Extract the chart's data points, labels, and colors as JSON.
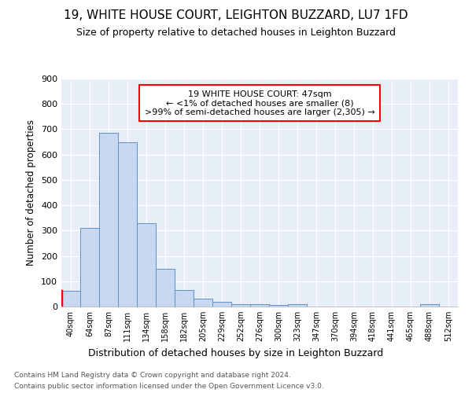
{
  "title": "19, WHITE HOUSE COURT, LEIGHTON BUZZARD, LU7 1FD",
  "subtitle": "Size of property relative to detached houses in Leighton Buzzard",
  "xlabel": "Distribution of detached houses by size in Leighton Buzzard",
  "ylabel": "Number of detached properties",
  "categories": [
    "40sqm",
    "64sqm",
    "87sqm",
    "111sqm",
    "134sqm",
    "158sqm",
    "182sqm",
    "205sqm",
    "229sqm",
    "252sqm",
    "276sqm",
    "300sqm",
    "323sqm",
    "347sqm",
    "370sqm",
    "394sqm",
    "418sqm",
    "441sqm",
    "465sqm",
    "488sqm",
    "512sqm"
  ],
  "bar_heights": [
    62,
    310,
    685,
    650,
    328,
    150,
    65,
    30,
    18,
    10,
    8,
    5,
    8,
    0,
    0,
    0,
    0,
    0,
    0,
    8,
    0
  ],
  "bar_color": "#c8d8f0",
  "bar_edge_color": "#6090c8",
  "annotation_box_text": "19 WHITE HOUSE COURT: 47sqm\n← <1% of detached houses are smaller (8)\n>99% of semi-detached houses are larger (2,305) →",
  "annotation_box_color": "red",
  "annotation_box_bg": "white",
  "red_bar_index": 0,
  "ylim": [
    0,
    900
  ],
  "yticks": [
    0,
    100,
    200,
    300,
    400,
    500,
    600,
    700,
    800,
    900
  ],
  "footer_line1": "Contains HM Land Registry data © Crown copyright and database right 2024.",
  "footer_line2": "Contains public sector information licensed under the Open Government Licence v3.0.",
  "bg_color": "#e8eef8",
  "grid_color": "#ffffff",
  "title_fontsize": 11,
  "subtitle_fontsize": 9,
  "ylabel_fontsize": 8.5,
  "xlabel_fontsize": 9
}
